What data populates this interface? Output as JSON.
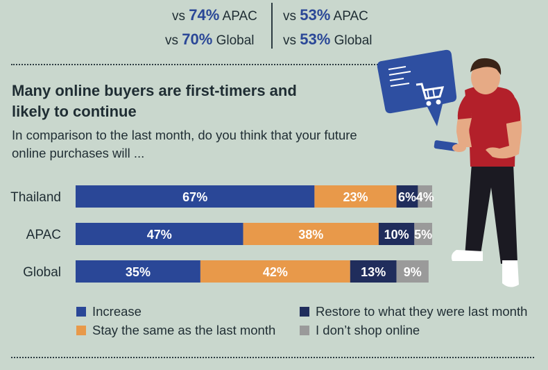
{
  "top_stats": {
    "left": [
      {
        "prefix": "vs ",
        "value": "74%",
        "label": " APAC"
      },
      {
        "prefix": "vs ",
        "value": "70%",
        "label": " Global"
      }
    ],
    "right": [
      {
        "prefix": "vs ",
        "value": "53%",
        "label": " APAC"
      },
      {
        "prefix": "vs ",
        "value": "53%",
        "label": " Global"
      }
    ]
  },
  "headline": "Many online buyers are first-timers and likely to continue",
  "subheading": "In comparison to the last month, do you think that your future online purchases will ...",
  "colors": {
    "increase": "#2a4797",
    "same": "#e8994a",
    "restore": "#202d5c",
    "noshop": "#9a9a9a"
  },
  "chart_data": {
    "type": "bar",
    "orientation": "horizontal",
    "stacked": true,
    "categories": [
      "Thailand",
      "APAC",
      "Global"
    ],
    "series": [
      {
        "name": "Increase",
        "values": [
          67,
          47,
          35
        ],
        "labels": [
          "67%",
          "47%",
          "35%"
        ],
        "color_key": "increase"
      },
      {
        "name": "Stay the same as the last month",
        "values": [
          23,
          38,
          42
        ],
        "labels": [
          "23%",
          "38%",
          "42%"
        ],
        "color_key": "same"
      },
      {
        "name": "Restore to what they were last month",
        "values": [
          6,
          10,
          13
        ],
        "labels": [
          "6%",
          "10%",
          "13%"
        ],
        "color_key": "restore"
      },
      {
        "name": "I don’t shop online",
        "values": [
          4,
          5,
          9
        ],
        "labels": [
          "4%",
          "5%",
          "9%"
        ],
        "color_key": "noshop"
      }
    ],
    "xlim": [
      0,
      100
    ],
    "grid": false,
    "legend_position": "bottom"
  },
  "illustration": {
    "subject": "person-with-phone-shopping-cart-icon"
  }
}
